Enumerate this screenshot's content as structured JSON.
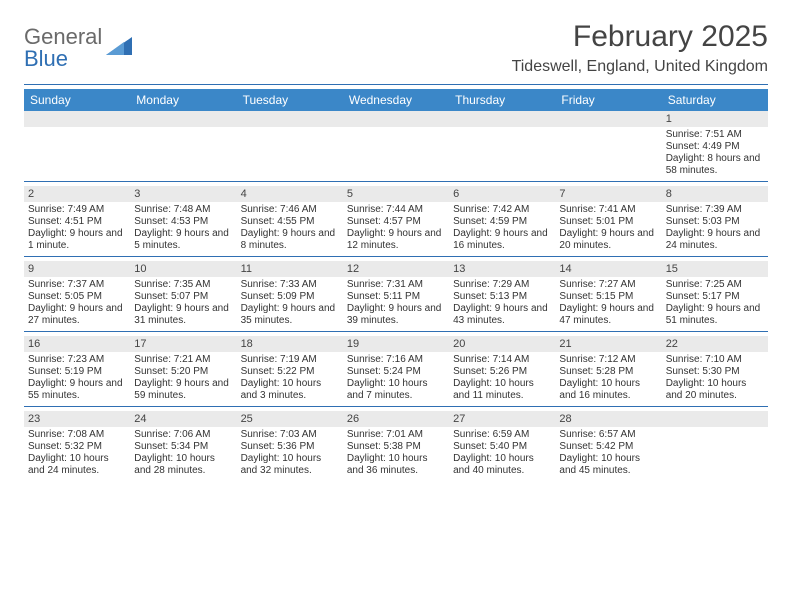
{
  "logo": {
    "word1": "General",
    "word2": "Blue"
  },
  "title": "February 2025",
  "location": "Tideswell, England, United Kingdom",
  "colors": {
    "header_bg": "#3b87c8",
    "header_text": "#ffffff",
    "rule": "#2f6fb3",
    "daynum_bg": "#eaeaea",
    "text": "#333333",
    "logo_gray": "#6a6a6a",
    "logo_blue": "#2f6fb3",
    "background": "#ffffff"
  },
  "typography": {
    "title_fontsize": 30,
    "location_fontsize": 16,
    "header_fontsize": 12,
    "cell_fontsize": 10,
    "daynum_fontsize": 11
  },
  "day_headers": [
    "Sunday",
    "Monday",
    "Tuesday",
    "Wednesday",
    "Thursday",
    "Friday",
    "Saturday"
  ],
  "weeks": [
    [
      null,
      null,
      null,
      null,
      null,
      null,
      {
        "n": "1",
        "sunrise": "Sunrise: 7:51 AM",
        "sunset": "Sunset: 4:49 PM",
        "daylight": "Daylight: 8 hours and 58 minutes."
      }
    ],
    [
      {
        "n": "2",
        "sunrise": "Sunrise: 7:49 AM",
        "sunset": "Sunset: 4:51 PM",
        "daylight": "Daylight: 9 hours and 1 minute."
      },
      {
        "n": "3",
        "sunrise": "Sunrise: 7:48 AM",
        "sunset": "Sunset: 4:53 PM",
        "daylight": "Daylight: 9 hours and 5 minutes."
      },
      {
        "n": "4",
        "sunrise": "Sunrise: 7:46 AM",
        "sunset": "Sunset: 4:55 PM",
        "daylight": "Daylight: 9 hours and 8 minutes."
      },
      {
        "n": "5",
        "sunrise": "Sunrise: 7:44 AM",
        "sunset": "Sunset: 4:57 PM",
        "daylight": "Daylight: 9 hours and 12 minutes."
      },
      {
        "n": "6",
        "sunrise": "Sunrise: 7:42 AM",
        "sunset": "Sunset: 4:59 PM",
        "daylight": "Daylight: 9 hours and 16 minutes."
      },
      {
        "n": "7",
        "sunrise": "Sunrise: 7:41 AM",
        "sunset": "Sunset: 5:01 PM",
        "daylight": "Daylight: 9 hours and 20 minutes."
      },
      {
        "n": "8",
        "sunrise": "Sunrise: 7:39 AM",
        "sunset": "Sunset: 5:03 PM",
        "daylight": "Daylight: 9 hours and 24 minutes."
      }
    ],
    [
      {
        "n": "9",
        "sunrise": "Sunrise: 7:37 AM",
        "sunset": "Sunset: 5:05 PM",
        "daylight": "Daylight: 9 hours and 27 minutes."
      },
      {
        "n": "10",
        "sunrise": "Sunrise: 7:35 AM",
        "sunset": "Sunset: 5:07 PM",
        "daylight": "Daylight: 9 hours and 31 minutes."
      },
      {
        "n": "11",
        "sunrise": "Sunrise: 7:33 AM",
        "sunset": "Sunset: 5:09 PM",
        "daylight": "Daylight: 9 hours and 35 minutes."
      },
      {
        "n": "12",
        "sunrise": "Sunrise: 7:31 AM",
        "sunset": "Sunset: 5:11 PM",
        "daylight": "Daylight: 9 hours and 39 minutes."
      },
      {
        "n": "13",
        "sunrise": "Sunrise: 7:29 AM",
        "sunset": "Sunset: 5:13 PM",
        "daylight": "Daylight: 9 hours and 43 minutes."
      },
      {
        "n": "14",
        "sunrise": "Sunrise: 7:27 AM",
        "sunset": "Sunset: 5:15 PM",
        "daylight": "Daylight: 9 hours and 47 minutes."
      },
      {
        "n": "15",
        "sunrise": "Sunrise: 7:25 AM",
        "sunset": "Sunset: 5:17 PM",
        "daylight": "Daylight: 9 hours and 51 minutes."
      }
    ],
    [
      {
        "n": "16",
        "sunrise": "Sunrise: 7:23 AM",
        "sunset": "Sunset: 5:19 PM",
        "daylight": "Daylight: 9 hours and 55 minutes."
      },
      {
        "n": "17",
        "sunrise": "Sunrise: 7:21 AM",
        "sunset": "Sunset: 5:20 PM",
        "daylight": "Daylight: 9 hours and 59 minutes."
      },
      {
        "n": "18",
        "sunrise": "Sunrise: 7:19 AM",
        "sunset": "Sunset: 5:22 PM",
        "daylight": "Daylight: 10 hours and 3 minutes."
      },
      {
        "n": "19",
        "sunrise": "Sunrise: 7:16 AM",
        "sunset": "Sunset: 5:24 PM",
        "daylight": "Daylight: 10 hours and 7 minutes."
      },
      {
        "n": "20",
        "sunrise": "Sunrise: 7:14 AM",
        "sunset": "Sunset: 5:26 PM",
        "daylight": "Daylight: 10 hours and 11 minutes."
      },
      {
        "n": "21",
        "sunrise": "Sunrise: 7:12 AM",
        "sunset": "Sunset: 5:28 PM",
        "daylight": "Daylight: 10 hours and 16 minutes."
      },
      {
        "n": "22",
        "sunrise": "Sunrise: 7:10 AM",
        "sunset": "Sunset: 5:30 PM",
        "daylight": "Daylight: 10 hours and 20 minutes."
      }
    ],
    [
      {
        "n": "23",
        "sunrise": "Sunrise: 7:08 AM",
        "sunset": "Sunset: 5:32 PM",
        "daylight": "Daylight: 10 hours and 24 minutes."
      },
      {
        "n": "24",
        "sunrise": "Sunrise: 7:06 AM",
        "sunset": "Sunset: 5:34 PM",
        "daylight": "Daylight: 10 hours and 28 minutes."
      },
      {
        "n": "25",
        "sunrise": "Sunrise: 7:03 AM",
        "sunset": "Sunset: 5:36 PM",
        "daylight": "Daylight: 10 hours and 32 minutes."
      },
      {
        "n": "26",
        "sunrise": "Sunrise: 7:01 AM",
        "sunset": "Sunset: 5:38 PM",
        "daylight": "Daylight: 10 hours and 36 minutes."
      },
      {
        "n": "27",
        "sunrise": "Sunrise: 6:59 AM",
        "sunset": "Sunset: 5:40 PM",
        "daylight": "Daylight: 10 hours and 40 minutes."
      },
      {
        "n": "28",
        "sunrise": "Sunrise: 6:57 AM",
        "sunset": "Sunset: 5:42 PM",
        "daylight": "Daylight: 10 hours and 45 minutes."
      },
      null
    ]
  ]
}
